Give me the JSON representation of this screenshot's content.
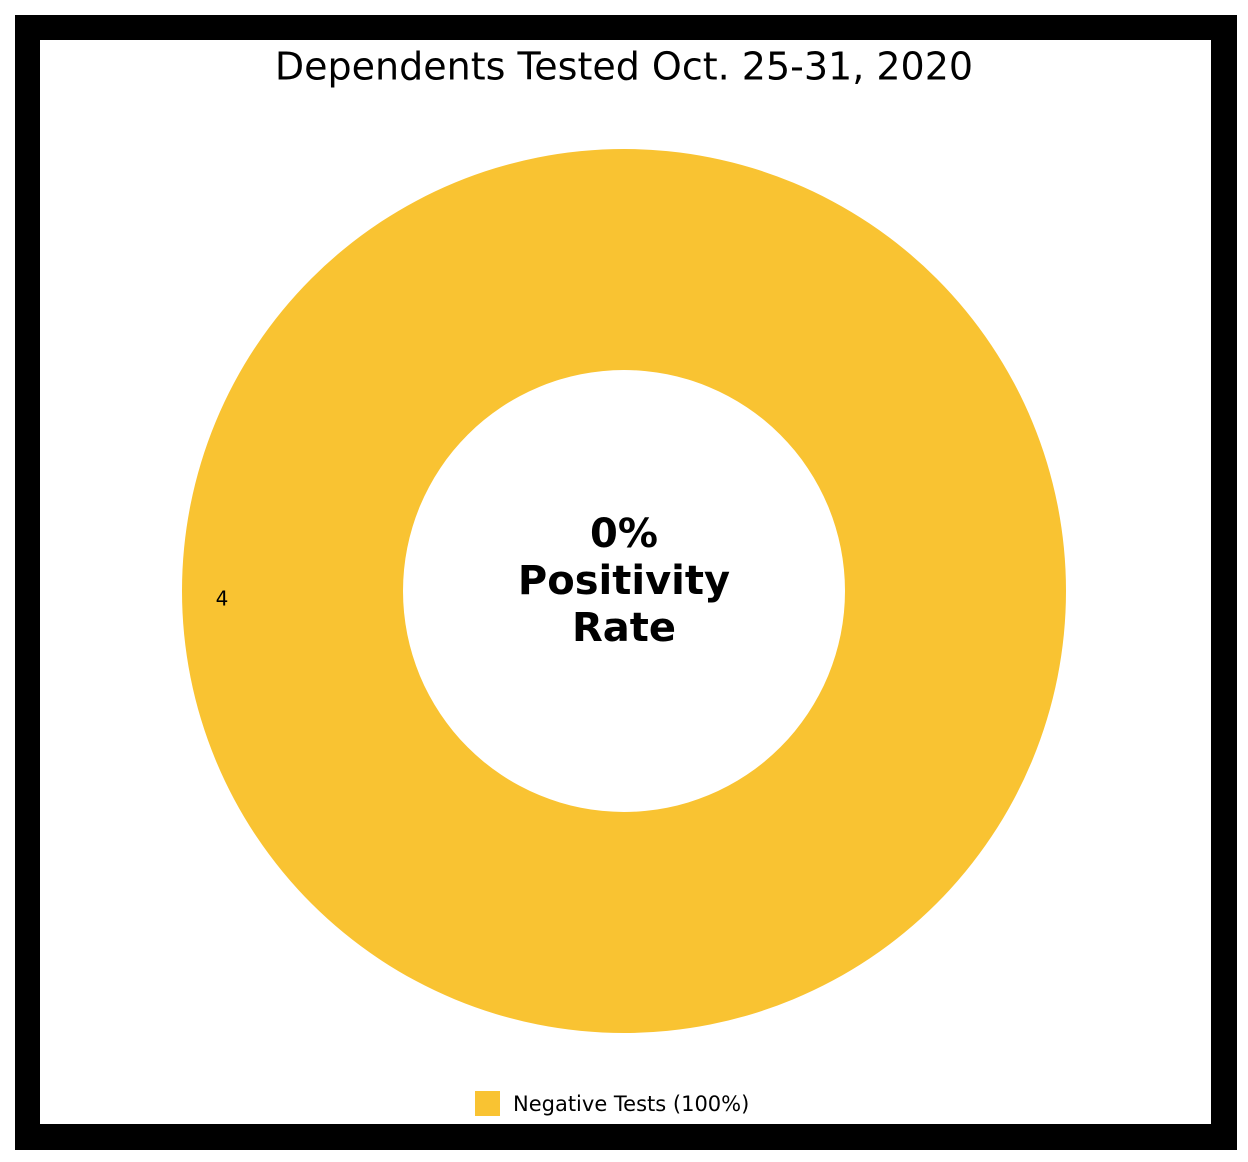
{
  "chart_data": {
    "type": "donut",
    "title": "Dependents Tested Oct. 25-31, 2020",
    "categories": [
      "Negative Tests (100%)"
    ],
    "values": [
      4
    ],
    "colors": [
      "#f9c332"
    ],
    "center_text": [
      "0%",
      "Positivity",
      "Rate"
    ],
    "legend": "bottom"
  }
}
